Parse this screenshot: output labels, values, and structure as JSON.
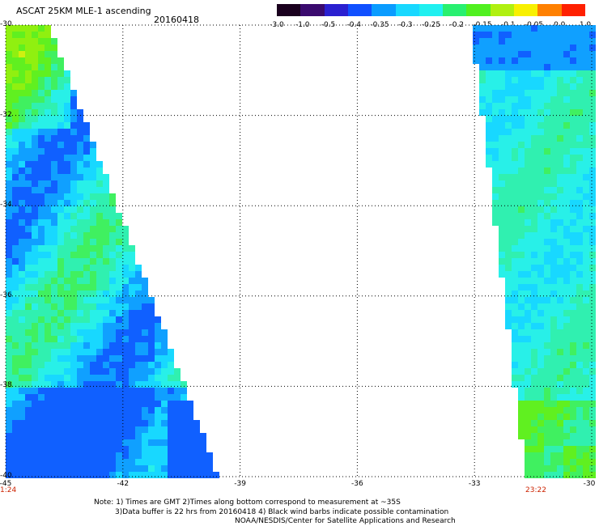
{
  "header": {
    "title": "ASCAT 25KM MLE-1 ascending",
    "date": "20160418"
  },
  "colorbar": {
    "labels": [
      "-3.0",
      "-1.0",
      "-0.5",
      "-0.4",
      "-0.35",
      "-0.3",
      "-0.25",
      "-0.2",
      "-0.15",
      "-0.1",
      "-0.05",
      "0.0",
      "1.0"
    ],
    "colors": [
      "#1a001e",
      "#3a0a6e",
      "#2a20d0",
      "#1050ff",
      "#0a9cff",
      "#18d8ff",
      "#20f0f0",
      "#28f070",
      "#50f020",
      "#b0f010",
      "#f8f000",
      "#ff8000",
      "#ff2000"
    ]
  },
  "axes": {
    "x_ticks": [
      "-45",
      "-42",
      "-39",
      "-36",
      "-33",
      "-30"
    ],
    "y_ticks": [
      "-30",
      "-32",
      "-34",
      "-36",
      "-38",
      "-40"
    ],
    "x_range": [
      -45,
      -30
    ],
    "y_range": [
      -40,
      -30
    ]
  },
  "swath_times": {
    "left": "1:24",
    "right": "23:22"
  },
  "notes": {
    "line1": "Note: 1) Times are GMT 2)Times along bottom correspond to measurement at ~35S",
    "line2": "3)Data buffer is 22 hrs from 20160418 4) Black wind barbs indicate possible contamination",
    "line3": "NOAA/NESDIS/Center for Satellite Applications and Research"
  },
  "colors": {
    "time_label": "#cc2200",
    "grid": "#000000"
  }
}
